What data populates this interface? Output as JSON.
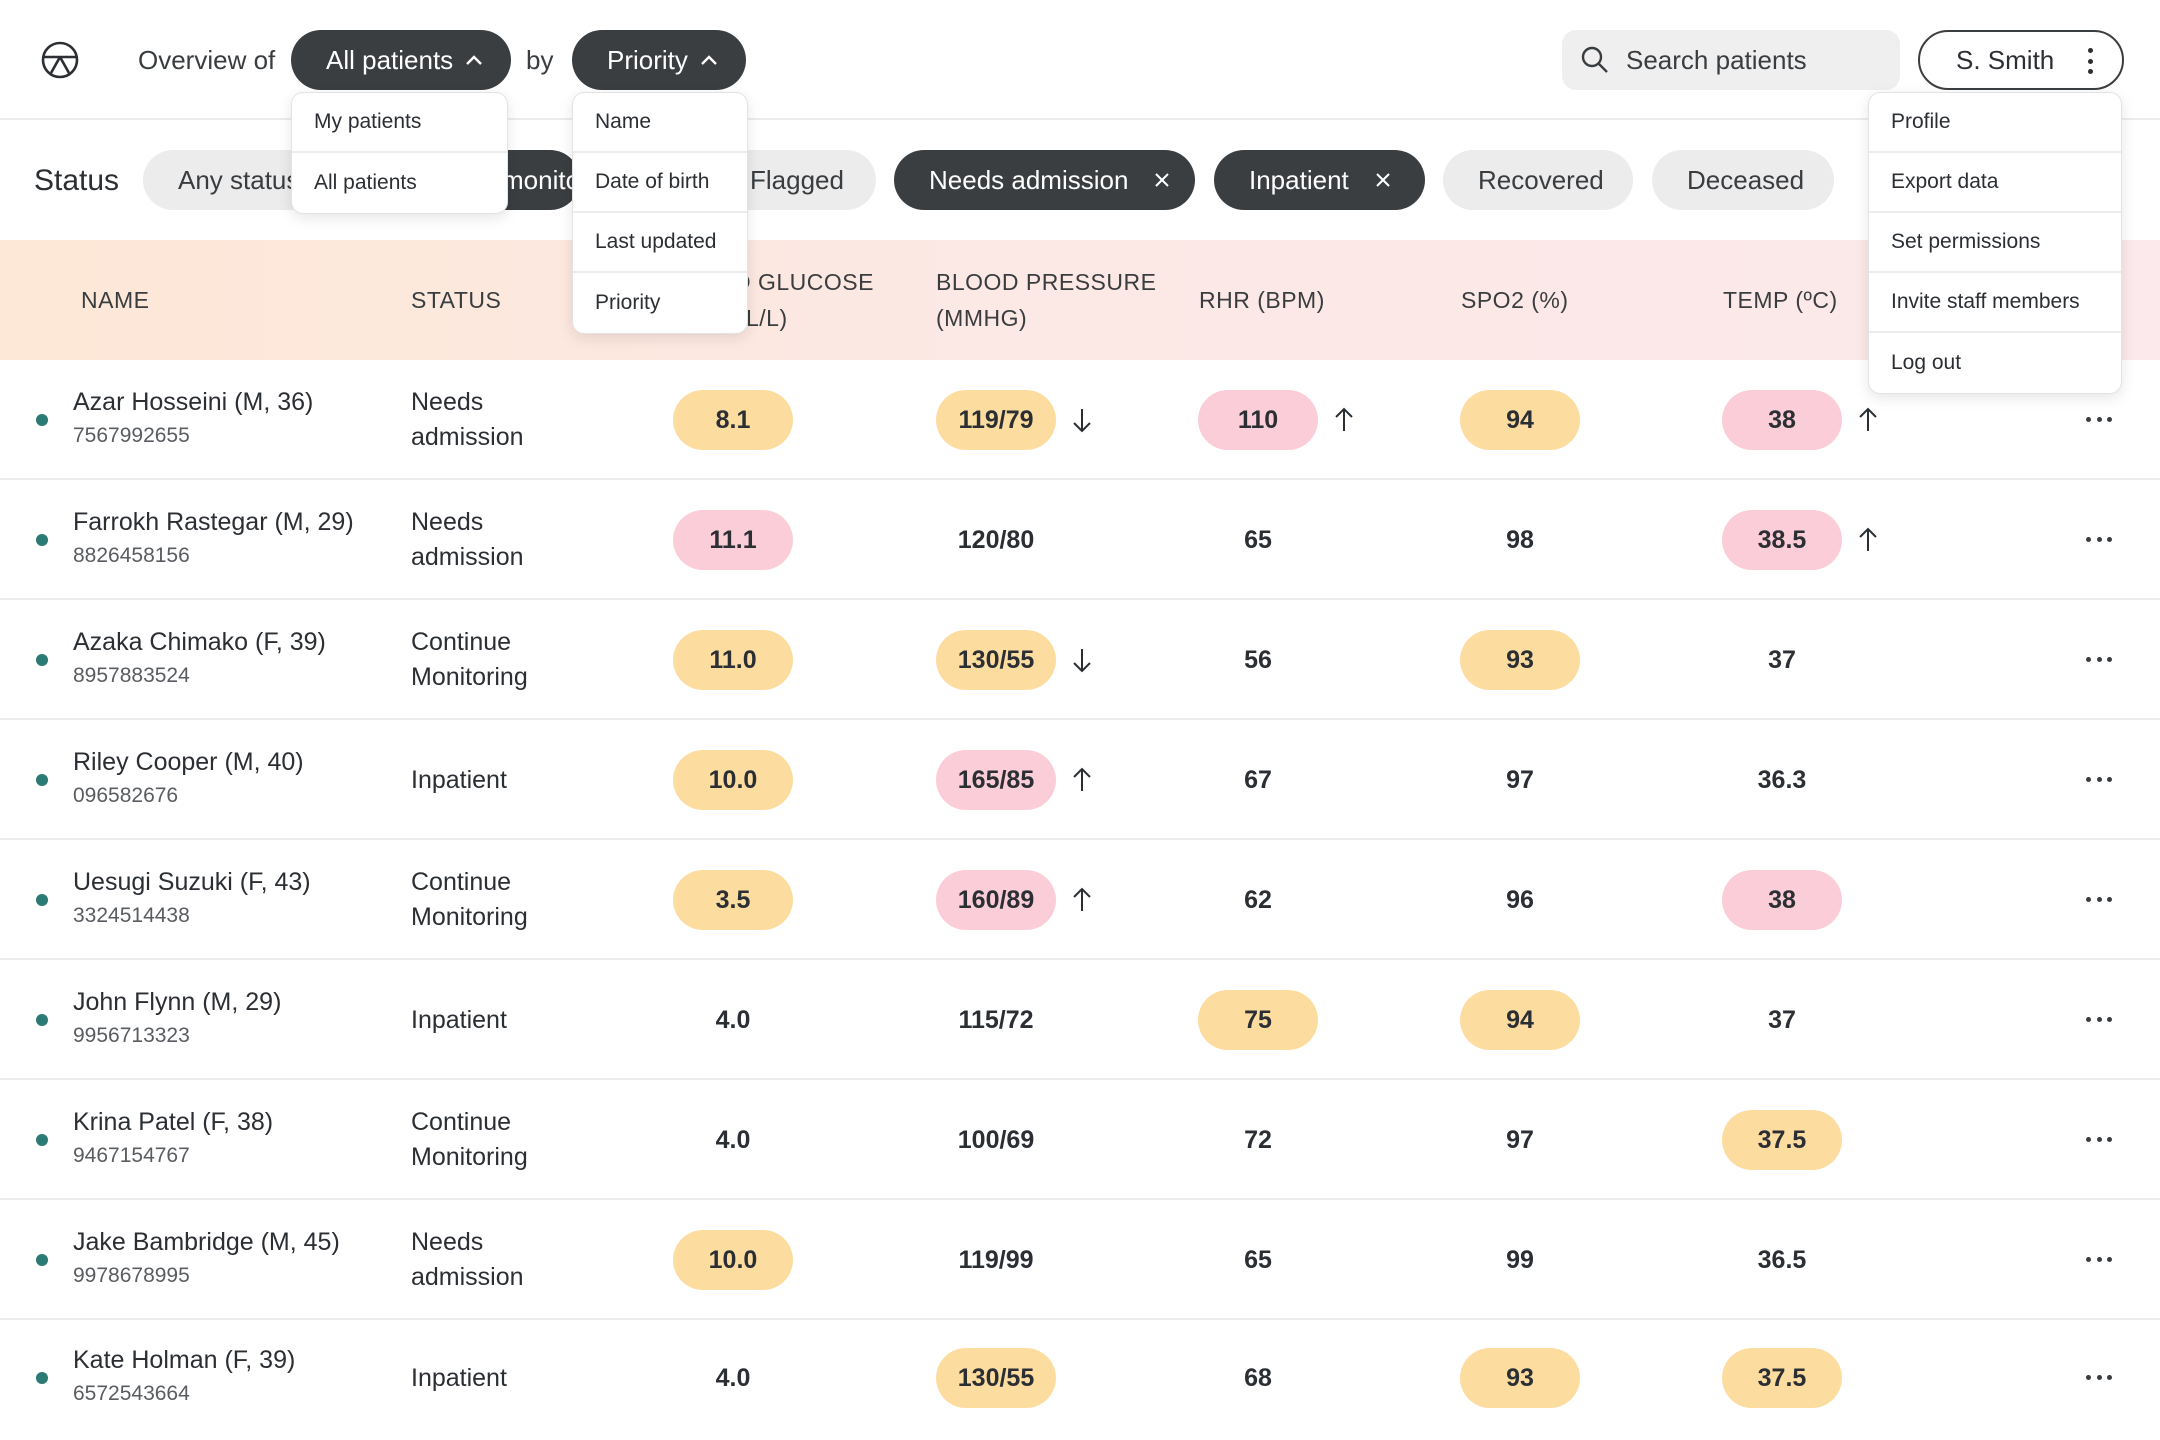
{
  "header": {
    "overview_label": "Overview of",
    "by_label": "by",
    "scope_button": "All patients",
    "sort_button": "Priority",
    "search_placeholder": "Search patients",
    "user_name": "S. Smith"
  },
  "scope_menu": [
    "My patients",
    "All patients"
  ],
  "sort_menu": [
    "Name",
    "Date of birth",
    "Last updated",
    "Priority"
  ],
  "user_menu": [
    "Profile",
    "Export data",
    "Set permissions",
    "Invite staff members",
    "Log out"
  ],
  "status_filter": {
    "label": "Status",
    "chips": [
      {
        "label": "Any status",
        "active": false
      },
      {
        "label": "Continue monitoring",
        "visible_text": "monito",
        "active": true
      },
      {
        "label": "Flagged",
        "active": false
      },
      {
        "label": "Needs admission",
        "active": true
      },
      {
        "label": "Inpatient",
        "active": true
      },
      {
        "label": "Recovered",
        "active": false
      },
      {
        "label": "Deceased",
        "active": false
      }
    ]
  },
  "table": {
    "columns": {
      "name": "NAME",
      "status": "STATUS",
      "glucose_line1": "D GLUCOSE",
      "glucose_line2": "L/L)",
      "bp_line1": "BLOOD PRESSURE",
      "bp_line2": "(MMHG)",
      "rhr": "RHR (BPM)",
      "spo2": "SPO2 (%)",
      "temp": "TEMP (ºC)"
    },
    "rows": [
      {
        "name": "Azar Hosseini (M, 36)",
        "id": "7567992655",
        "status": [
          "Needs",
          "admission"
        ],
        "glucose": {
          "v": "8.1",
          "level": "warn"
        },
        "bp": {
          "v": "119/79",
          "level": "warn",
          "trend": "down"
        },
        "rhr": {
          "v": "110",
          "level": "crit",
          "trend": "up"
        },
        "spo2": {
          "v": "94",
          "level": "warn"
        },
        "temp": {
          "v": "38",
          "level": "crit",
          "trend": "up"
        }
      },
      {
        "name": "Farrokh Rastegar (M, 29)",
        "id": "8826458156",
        "status": [
          "Needs",
          "admission"
        ],
        "glucose": {
          "v": "11.1",
          "level": "crit"
        },
        "bp": {
          "v": "120/80",
          "level": "normal"
        },
        "rhr": {
          "v": "65",
          "level": "normal"
        },
        "spo2": {
          "v": "98",
          "level": "normal"
        },
        "temp": {
          "v": "38.5",
          "level": "crit",
          "trend": "up"
        }
      },
      {
        "name": "Azaka Chimako (F, 39)",
        "id": "8957883524",
        "status": [
          "Continue",
          "Monitoring"
        ],
        "glucose": {
          "v": "11.0",
          "level": "warn"
        },
        "bp": {
          "v": "130/55",
          "level": "warn",
          "trend": "down"
        },
        "rhr": {
          "v": "56",
          "level": "normal"
        },
        "spo2": {
          "v": "93",
          "level": "warn"
        },
        "temp": {
          "v": "37",
          "level": "normal"
        }
      },
      {
        "name": "Riley Cooper (M, 40)",
        "id": "096582676",
        "status": [
          "Inpatient"
        ],
        "glucose": {
          "v": "10.0",
          "level": "warn"
        },
        "bp": {
          "v": "165/85",
          "level": "crit",
          "trend": "up"
        },
        "rhr": {
          "v": "67",
          "level": "normal"
        },
        "spo2": {
          "v": "97",
          "level": "normal"
        },
        "temp": {
          "v": "36.3",
          "level": "normal"
        }
      },
      {
        "name": "Uesugi Suzuki (F, 43)",
        "id": "3324514438",
        "status": [
          "Continue",
          "Monitoring"
        ],
        "glucose": {
          "v": "3.5",
          "level": "warn"
        },
        "bp": {
          "v": "160/89",
          "level": "crit",
          "trend": "up"
        },
        "rhr": {
          "v": "62",
          "level": "normal"
        },
        "spo2": {
          "v": "96",
          "level": "normal"
        },
        "temp": {
          "v": "38",
          "level": "crit"
        }
      },
      {
        "name": "John Flynn (M, 29)",
        "id": "9956713323",
        "status": [
          "Inpatient"
        ],
        "glucose": {
          "v": "4.0",
          "level": "normal"
        },
        "bp": {
          "v": "115/72",
          "level": "normal"
        },
        "rhr": {
          "v": "75",
          "level": "warn"
        },
        "spo2": {
          "v": "94",
          "level": "warn"
        },
        "temp": {
          "v": "37",
          "level": "normal"
        }
      },
      {
        "name": "Krina Patel (F, 38)",
        "id": "9467154767",
        "status": [
          "Continue",
          "Monitoring"
        ],
        "glucose": {
          "v": "4.0",
          "level": "normal"
        },
        "bp": {
          "v": "100/69",
          "level": "normal"
        },
        "rhr": {
          "v": "72",
          "level": "normal"
        },
        "spo2": {
          "v": "97",
          "level": "normal"
        },
        "temp": {
          "v": "37.5",
          "level": "warn"
        }
      },
      {
        "name": "Jake Bambridge (M, 45)",
        "id": "9978678995",
        "status": [
          "Needs",
          "admission"
        ],
        "glucose": {
          "v": "10.0",
          "level": "warn"
        },
        "bp": {
          "v": "119/99",
          "level": "normal"
        },
        "rhr": {
          "v": "65",
          "level": "normal"
        },
        "spo2": {
          "v": "99",
          "level": "normal"
        },
        "temp": {
          "v": "36.5",
          "level": "normal"
        }
      },
      {
        "name": "Kate Holman (F, 39)",
        "id": "6572543664",
        "status": [
          "Inpatient"
        ],
        "glucose": {
          "v": "4.0",
          "level": "normal"
        },
        "bp": {
          "v": "130/55",
          "level": "warn"
        },
        "rhr": {
          "v": "68",
          "level": "normal"
        },
        "spo2": {
          "v": "93",
          "level": "warn"
        },
        "temp": {
          "v": "37.5",
          "level": "warn"
        }
      }
    ]
  },
  "colors": {
    "accent_dark": "#3b3e41",
    "warn": "#fddca0",
    "critical": "#fbcdd8",
    "status_dot": "#2b7a73"
  }
}
